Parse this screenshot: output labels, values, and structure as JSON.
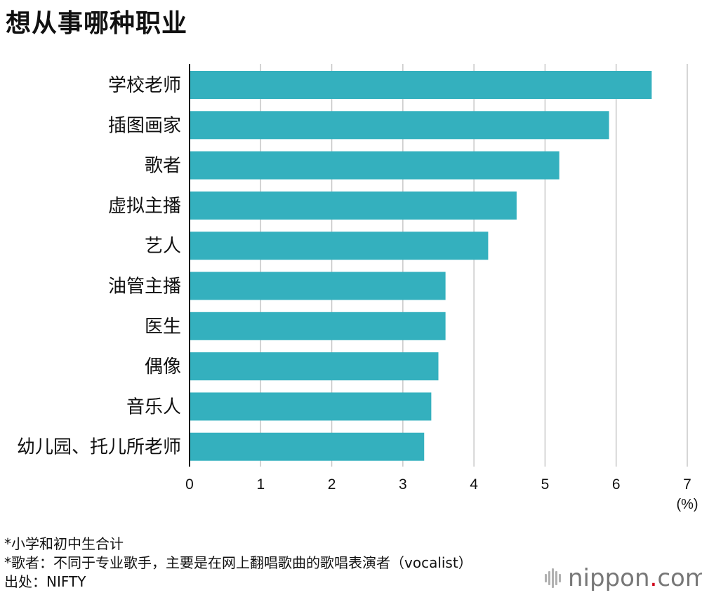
{
  "title": "想从事哪种职业",
  "chart_data": {
    "type": "bar",
    "orientation": "horizontal",
    "categories": [
      "学校老师",
      "插图画家",
      "歌者",
      "虚拟主播",
      "艺人",
      "油管主播",
      "医生",
      "偶像",
      "音乐人",
      "幼儿园、托儿所老师"
    ],
    "values": [
      6.5,
      5.9,
      5.2,
      4.6,
      4.2,
      3.6,
      3.6,
      3.5,
      3.4,
      3.3
    ],
    "xlim": [
      0,
      7
    ],
    "xticks": [
      "0",
      "1",
      "2",
      "3",
      "4",
      "5",
      "6",
      "7"
    ],
    "xunit": "(%)",
    "bar_color": "#34b0be",
    "grid": true
  },
  "notes": [
    "*小学和初中生合计",
    "*歌者：不同于专业歌手，主要是在网上翻唱歌曲的歌唱表演者（vocalist）",
    "出处：NIFTY"
  ],
  "brand": {
    "name": "nippon",
    "dot": ".",
    "tld": "com"
  }
}
